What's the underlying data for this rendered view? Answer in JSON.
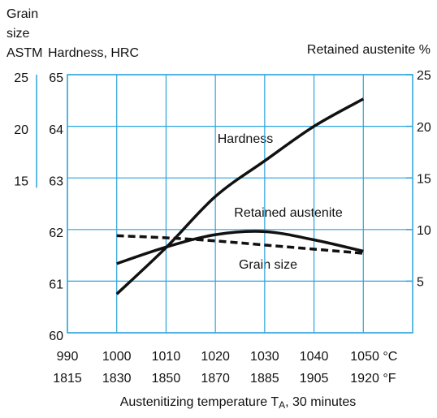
{
  "chart_data": {
    "type": "line",
    "y3_label": [
      "Grain",
      "size",
      "ASTM"
    ],
    "ylabel": "Hardness, HRC",
    "y2label": "Retained austenite %",
    "xlabel": [
      "Austenitizing temperature T",
      "A",
      ", 30 minutes"
    ],
    "x": [
      1000,
      1010,
      1020,
      1030,
      1040,
      1050
    ],
    "xlim": [
      990,
      1060
    ],
    "xticks": [
      990,
      1000,
      1010,
      1020,
      1030,
      1040,
      {
        "value": 1050,
        "label": "1050 °C"
      }
    ],
    "xticks_fahrenheit": [
      "1815",
      "1830",
      "1850",
      "1870",
      "1885",
      "1905",
      "1920 °F"
    ],
    "ylim": [
      60,
      65
    ],
    "yticks": [
      60,
      61,
      62,
      63,
      64,
      65
    ],
    "y2lim": [
      0,
      25
    ],
    "y2ticks": [
      5,
      10,
      15,
      20,
      25
    ],
    "y3lim": [
      0,
      25
    ],
    "y3ticks": [
      15,
      20,
      25
    ],
    "grid": true,
    "series": [
      {
        "name": "Hardness",
        "color": "#111111",
        "values": [
          60.75,
          61.65,
          62.64,
          63.33,
          64.0,
          64.53
        ]
      },
      {
        "name": "Retained austenite",
        "color": "#111111",
        "axis": "y2",
        "values": [
          6.7,
          8.3,
          9.5,
          9.8,
          9.0,
          7.9
        ]
      },
      {
        "name": "Grain size",
        "color": "#111111",
        "axis": "y3",
        "dashed": true,
        "values": [
          9.4,
          9.2,
          8.9,
          8.5,
          8.1,
          7.7
        ]
      }
    ]
  }
}
